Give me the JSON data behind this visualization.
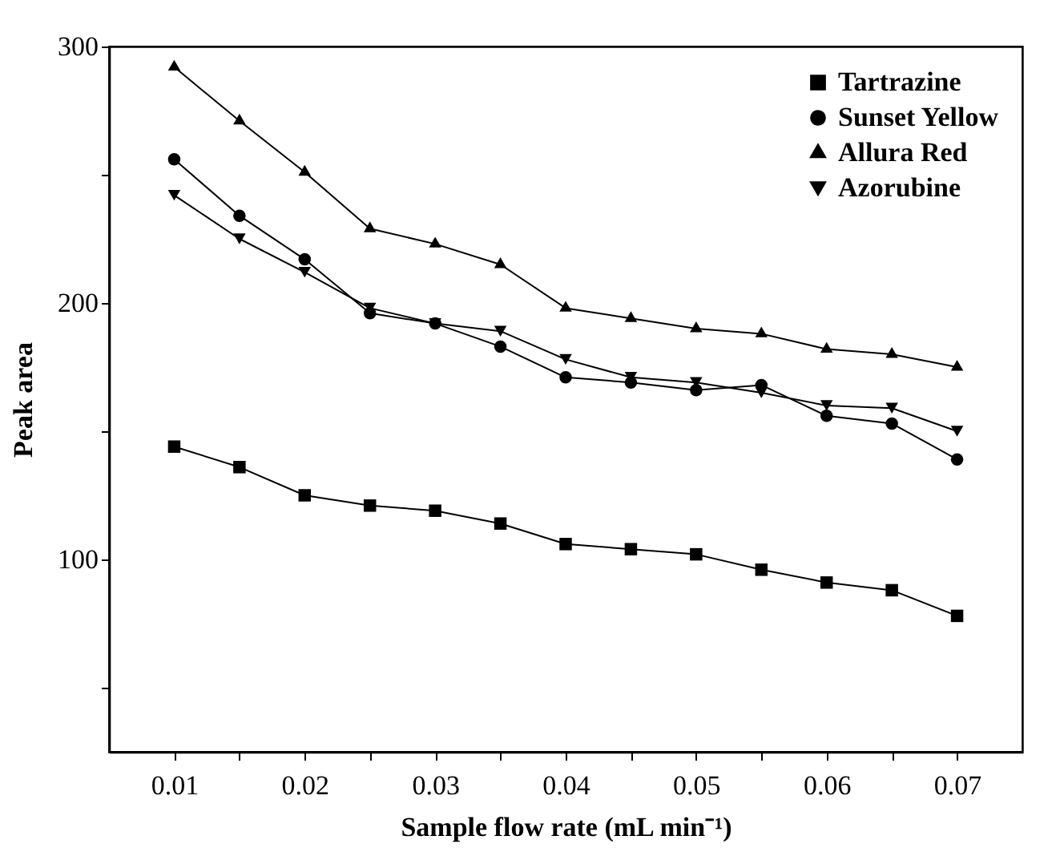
{
  "chart_data": {
    "type": "line",
    "xlabel": "Sample flow rate (mL min⁻¹)",
    "ylabel": "Peak area",
    "x": [
      0.01,
      0.015,
      0.02,
      0.025,
      0.03,
      0.035,
      0.04,
      0.045,
      0.05,
      0.055,
      0.06,
      0.065,
      0.07
    ],
    "series": [
      {
        "name": "Tartrazine",
        "color": "#000000",
        "marker": "square",
        "values": [
          144,
          136,
          125,
          121,
          119,
          114,
          106,
          104,
          102,
          96,
          91,
          88,
          78
        ]
      },
      {
        "name": "Sunset Yellow",
        "color": "#000000",
        "marker": "circle",
        "values": [
          256,
          234,
          217,
          196,
          192,
          183,
          171,
          169,
          166,
          168,
          156,
          153,
          139
        ]
      },
      {
        "name": "Allura Red",
        "color": "#000000",
        "marker": "triangle",
        "values": [
          292,
          271,
          251,
          229,
          223,
          215,
          198,
          194,
          190,
          188,
          182,
          180,
          175
        ]
      },
      {
        "name": "Azorubine",
        "color": "#000000",
        "marker": "triangle-down",
        "values": [
          242,
          225,
          212,
          198,
          192,
          189,
          178,
          171,
          169,
          165,
          160,
          159,
          150
        ]
      }
    ],
    "xlim": [
      0.005,
      0.075
    ],
    "xticks": [
      0.01,
      {
        "value": 0.015,
        "label": null
      },
      0.02,
      {
        "value": 0.025,
        "label": null
      },
      0.03,
      {
        "value": 0.035,
        "label": null
      },
      0.04,
      {
        "value": 0.045,
        "label": null
      },
      0.05,
      {
        "value": 0.055,
        "label": null
      },
      0.06,
      {
        "value": 0.065,
        "label": null
      },
      0.07
    ],
    "ylim": [
      25,
      300
    ],
    "yticks": [
      {
        "value": 50,
        "label": null
      },
      100,
      {
        "value": 150,
        "label": null
      },
      200,
      {
        "value": 250,
        "label": null
      },
      300
    ],
    "legend": "top right",
    "marker": "circle",
    "line_style": "solid",
    "grid": false
  }
}
